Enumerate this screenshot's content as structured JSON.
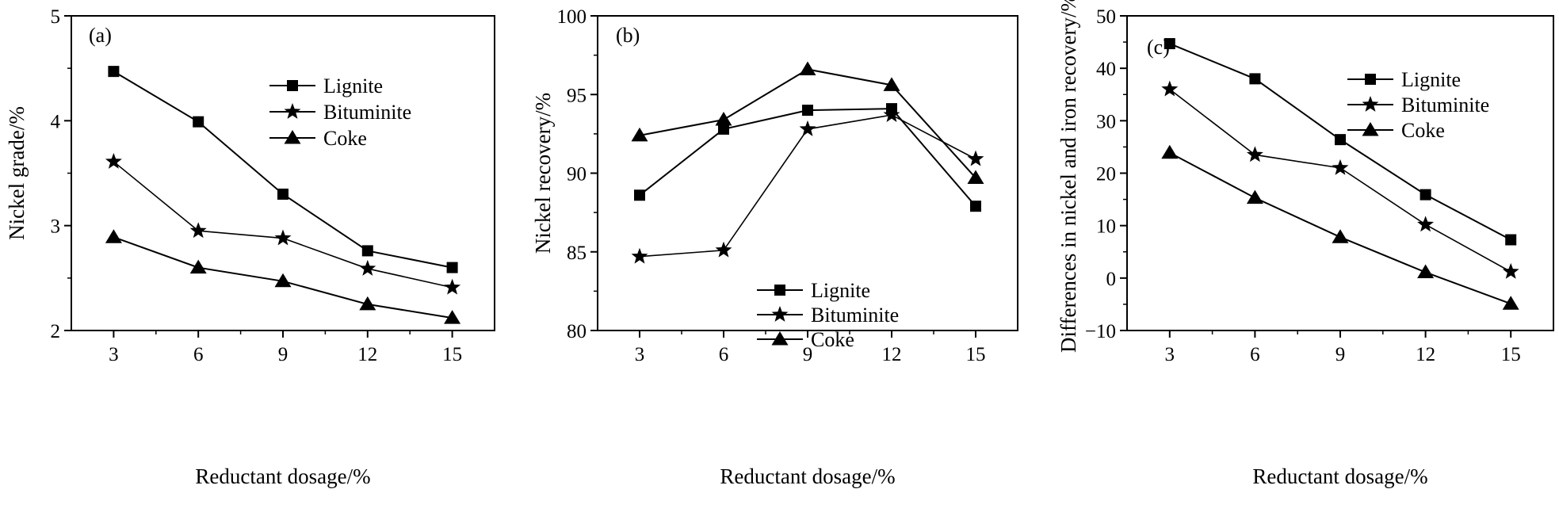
{
  "chart_data": [
    {
      "type": "line",
      "panel_label": "(a)",
      "xlabel": "Reductant dosage/%",
      "ylabel": "Nickel grade/%",
      "x": [
        3,
        6,
        9,
        12,
        15
      ],
      "x_ticks": [
        "3",
        "6",
        "9",
        "12",
        "15"
      ],
      "ylim": [
        2,
        5
      ],
      "y_ticks": [
        "2",
        "3",
        "4",
        "5"
      ],
      "grid": false,
      "legend_position": "upper-right",
      "series": [
        {
          "name": "Lignite",
          "marker": "square",
          "values": [
            4.47,
            3.99,
            3.3,
            2.76,
            2.6
          ]
        },
        {
          "name": "Bituminite",
          "marker": "star",
          "values": [
            3.61,
            2.95,
            2.88,
            2.59,
            2.41
          ]
        },
        {
          "name": "Coke",
          "marker": "triangle",
          "values": [
            2.89,
            2.6,
            2.47,
            2.25,
            2.12
          ]
        }
      ]
    },
    {
      "type": "line",
      "panel_label": "(b)",
      "xlabel": "Reductant dosage/%",
      "ylabel": "Nickel recovery/%",
      "x": [
        3,
        6,
        9,
        12,
        15
      ],
      "x_ticks": [
        "3",
        "6",
        "9",
        "12",
        "15"
      ],
      "ylim": [
        80,
        100
      ],
      "y_ticks": [
        "80",
        "85",
        "90",
        "95",
        "100"
      ],
      "grid": false,
      "legend_position": "lower-center",
      "series": [
        {
          "name": "Lignite",
          "marker": "square",
          "values": [
            88.6,
            92.8,
            94.0,
            94.1,
            87.9
          ]
        },
        {
          "name": "Bituminite",
          "marker": "star",
          "values": [
            84.7,
            85.1,
            92.8,
            93.7,
            90.9
          ]
        },
        {
          "name": "Coke",
          "marker": "triangle",
          "values": [
            92.4,
            93.4,
            96.6,
            95.6,
            89.7
          ]
        }
      ]
    },
    {
      "type": "line",
      "panel_label": "(c)",
      "xlabel": "Reductant dosage/%",
      "ylabel": "Differences in nickel and iron recovery/%",
      "x": [
        3,
        6,
        9,
        12,
        15
      ],
      "x_ticks": [
        "3",
        "6",
        "9",
        "12",
        "15"
      ],
      "ylim": [
        -10,
        50
      ],
      "y_ticks": [
        "−10",
        "0",
        "10",
        "20",
        "30",
        "40",
        "50"
      ],
      "grid": false,
      "legend_position": "upper-right",
      "series": [
        {
          "name": "Lignite",
          "marker": "square",
          "values": [
            44.7,
            38.0,
            26.4,
            15.9,
            7.3
          ]
        },
        {
          "name": "Bituminite",
          "marker": "star",
          "values": [
            36.0,
            23.5,
            21.0,
            10.2,
            1.2
          ]
        },
        {
          "name": "Coke",
          "marker": "triangle",
          "values": [
            23.9,
            15.3,
            7.8,
            1.1,
            -4.9
          ]
        }
      ]
    }
  ]
}
